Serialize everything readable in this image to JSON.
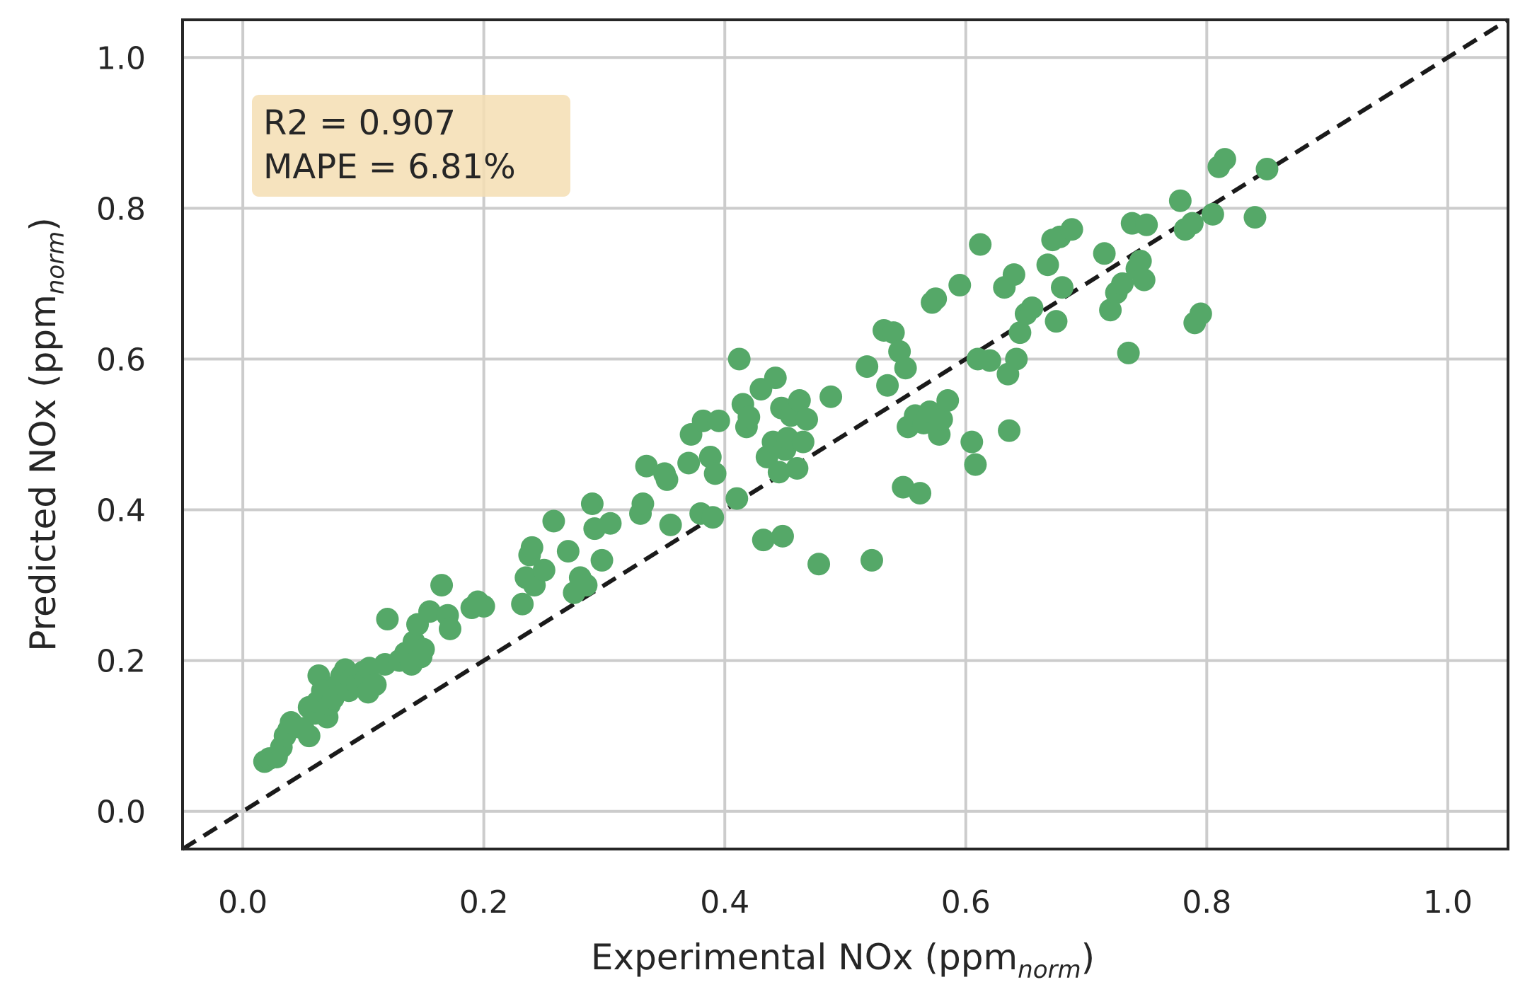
{
  "chart_data": {
    "type": "scatter",
    "xlabel": "Experimental NOx (ppm",
    "xlabel_sub": "norm",
    "xlabel_end": ")",
    "ylabel": "Predicted NOx (ppm",
    "ylabel_sub": "norm",
    "ylabel_end": ")",
    "xlim": [
      -0.05,
      1.05
    ],
    "ylim": [
      -0.05,
      1.05
    ],
    "xticks": [
      0.0,
      0.2,
      0.4,
      0.6,
      0.8,
      1.0
    ],
    "yticks": [
      0.0,
      0.2,
      0.4,
      0.6,
      0.8,
      1.0
    ],
    "xtick_labels": [
      "0.0",
      "0.2",
      "0.4",
      "0.6",
      "0.8",
      "1.0"
    ],
    "ytick_labels": [
      "0.0",
      "0.2",
      "0.4",
      "0.6",
      "0.8",
      "1.0"
    ],
    "grid": true,
    "reference_line": "y = x (dashed)",
    "annotation": {
      "line1": "R2 = 0.907",
      "line2": "MAPE = 6.81%",
      "placement": "top-left"
    },
    "colors": {
      "points": "#55a868",
      "reference_line": "#1a1a1a",
      "grid": "#cccccc",
      "annotation_bg": "#f5deb3",
      "axes": "#262626"
    },
    "points": [
      [
        0.018,
        0.066
      ],
      [
        0.022,
        0.07
      ],
      [
        0.028,
        0.072
      ],
      [
        0.032,
        0.085
      ],
      [
        0.035,
        0.1
      ],
      [
        0.038,
        0.108
      ],
      [
        0.04,
        0.118
      ],
      [
        0.05,
        0.11
      ],
      [
        0.055,
        0.1
      ],
      [
        0.055,
        0.138
      ],
      [
        0.06,
        0.13
      ],
      [
        0.062,
        0.145
      ],
      [
        0.063,
        0.18
      ],
      [
        0.066,
        0.16
      ],
      [
        0.07,
        0.125
      ],
      [
        0.072,
        0.142
      ],
      [
        0.075,
        0.15
      ],
      [
        0.078,
        0.165
      ],
      [
        0.08,
        0.17
      ],
      [
        0.082,
        0.18
      ],
      [
        0.085,
        0.188
      ],
      [
        0.088,
        0.16
      ],
      [
        0.09,
        0.175
      ],
      [
        0.095,
        0.17
      ],
      [
        0.1,
        0.185
      ],
      [
        0.102,
        0.175
      ],
      [
        0.104,
        0.158
      ],
      [
        0.105,
        0.19
      ],
      [
        0.11,
        0.168
      ],
      [
        0.118,
        0.195
      ],
      [
        0.12,
        0.255
      ],
      [
        0.13,
        0.2
      ],
      [
        0.135,
        0.21
      ],
      [
        0.14,
        0.195
      ],
      [
        0.142,
        0.225
      ],
      [
        0.145,
        0.248
      ],
      [
        0.148,
        0.205
      ],
      [
        0.15,
        0.215
      ],
      [
        0.155,
        0.265
      ],
      [
        0.165,
        0.3
      ],
      [
        0.17,
        0.26
      ],
      [
        0.172,
        0.242
      ],
      [
        0.19,
        0.27
      ],
      [
        0.195,
        0.278
      ],
      [
        0.2,
        0.272
      ],
      [
        0.232,
        0.275
      ],
      [
        0.235,
        0.31
      ],
      [
        0.238,
        0.34
      ],
      [
        0.24,
        0.35
      ],
      [
        0.242,
        0.3
      ],
      [
        0.25,
        0.32
      ],
      [
        0.258,
        0.385
      ],
      [
        0.27,
        0.345
      ],
      [
        0.275,
        0.29
      ],
      [
        0.28,
        0.31
      ],
      [
        0.285,
        0.3
      ],
      [
        0.29,
        0.408
      ],
      [
        0.292,
        0.375
      ],
      [
        0.298,
        0.333
      ],
      [
        0.305,
        0.382
      ],
      [
        0.33,
        0.395
      ],
      [
        0.332,
        0.408
      ],
      [
        0.335,
        0.458
      ],
      [
        0.35,
        0.448
      ],
      [
        0.352,
        0.44
      ],
      [
        0.355,
        0.38
      ],
      [
        0.37,
        0.462
      ],
      [
        0.372,
        0.5
      ],
      [
        0.38,
        0.395
      ],
      [
        0.382,
        0.518
      ],
      [
        0.388,
        0.47
      ],
      [
        0.39,
        0.39
      ],
      [
        0.392,
        0.448
      ],
      [
        0.395,
        0.518
      ],
      [
        0.41,
        0.415
      ],
      [
        0.412,
        0.6
      ],
      [
        0.415,
        0.54
      ],
      [
        0.418,
        0.51
      ],
      [
        0.42,
        0.523
      ],
      [
        0.43,
        0.56
      ],
      [
        0.432,
        0.36
      ],
      [
        0.435,
        0.47
      ],
      [
        0.44,
        0.49
      ],
      [
        0.442,
        0.575
      ],
      [
        0.445,
        0.45
      ],
      [
        0.447,
        0.535
      ],
      [
        0.448,
        0.365
      ],
      [
        0.45,
        0.48
      ],
      [
        0.452,
        0.495
      ],
      [
        0.455,
        0.525
      ],
      [
        0.46,
        0.455
      ],
      [
        0.462,
        0.545
      ],
      [
        0.465,
        0.49
      ],
      [
        0.468,
        0.52
      ],
      [
        0.478,
        0.328
      ],
      [
        0.488,
        0.55
      ],
      [
        0.518,
        0.59
      ],
      [
        0.522,
        0.333
      ],
      [
        0.532,
        0.638
      ],
      [
        0.535,
        0.565
      ],
      [
        0.54,
        0.635
      ],
      [
        0.545,
        0.61
      ],
      [
        0.548,
        0.43
      ],
      [
        0.55,
        0.588
      ],
      [
        0.552,
        0.51
      ],
      [
        0.558,
        0.525
      ],
      [
        0.562,
        0.422
      ],
      [
        0.565,
        0.515
      ],
      [
        0.57,
        0.53
      ],
      [
        0.572,
        0.675
      ],
      [
        0.575,
        0.68
      ],
      [
        0.578,
        0.5
      ],
      [
        0.58,
        0.52
      ],
      [
        0.585,
        0.545
      ],
      [
        0.595,
        0.698
      ],
      [
        0.605,
        0.49
      ],
      [
        0.608,
        0.46
      ],
      [
        0.61,
        0.6
      ],
      [
        0.612,
        0.752
      ],
      [
        0.62,
        0.598
      ],
      [
        0.632,
        0.695
      ],
      [
        0.635,
        0.58
      ],
      [
        0.636,
        0.505
      ],
      [
        0.64,
        0.712
      ],
      [
        0.642,
        0.6
      ],
      [
        0.645,
        0.635
      ],
      [
        0.65,
        0.66
      ],
      [
        0.655,
        0.668
      ],
      [
        0.668,
        0.725
      ],
      [
        0.672,
        0.758
      ],
      [
        0.675,
        0.65
      ],
      [
        0.678,
        0.762
      ],
      [
        0.68,
        0.695
      ],
      [
        0.688,
        0.772
      ],
      [
        0.715,
        0.74
      ],
      [
        0.72,
        0.665
      ],
      [
        0.725,
        0.688
      ],
      [
        0.73,
        0.7
      ],
      [
        0.735,
        0.608
      ],
      [
        0.738,
        0.78
      ],
      [
        0.742,
        0.72
      ],
      [
        0.745,
        0.73
      ],
      [
        0.748,
        0.705
      ],
      [
        0.75,
        0.778
      ],
      [
        0.778,
        0.81
      ],
      [
        0.782,
        0.772
      ],
      [
        0.788,
        0.78
      ],
      [
        0.79,
        0.648
      ],
      [
        0.795,
        0.66
      ],
      [
        0.805,
        0.792
      ],
      [
        0.81,
        0.855
      ],
      [
        0.815,
        0.865
      ],
      [
        0.84,
        0.788
      ],
      [
        0.85,
        0.852
      ]
    ]
  }
}
